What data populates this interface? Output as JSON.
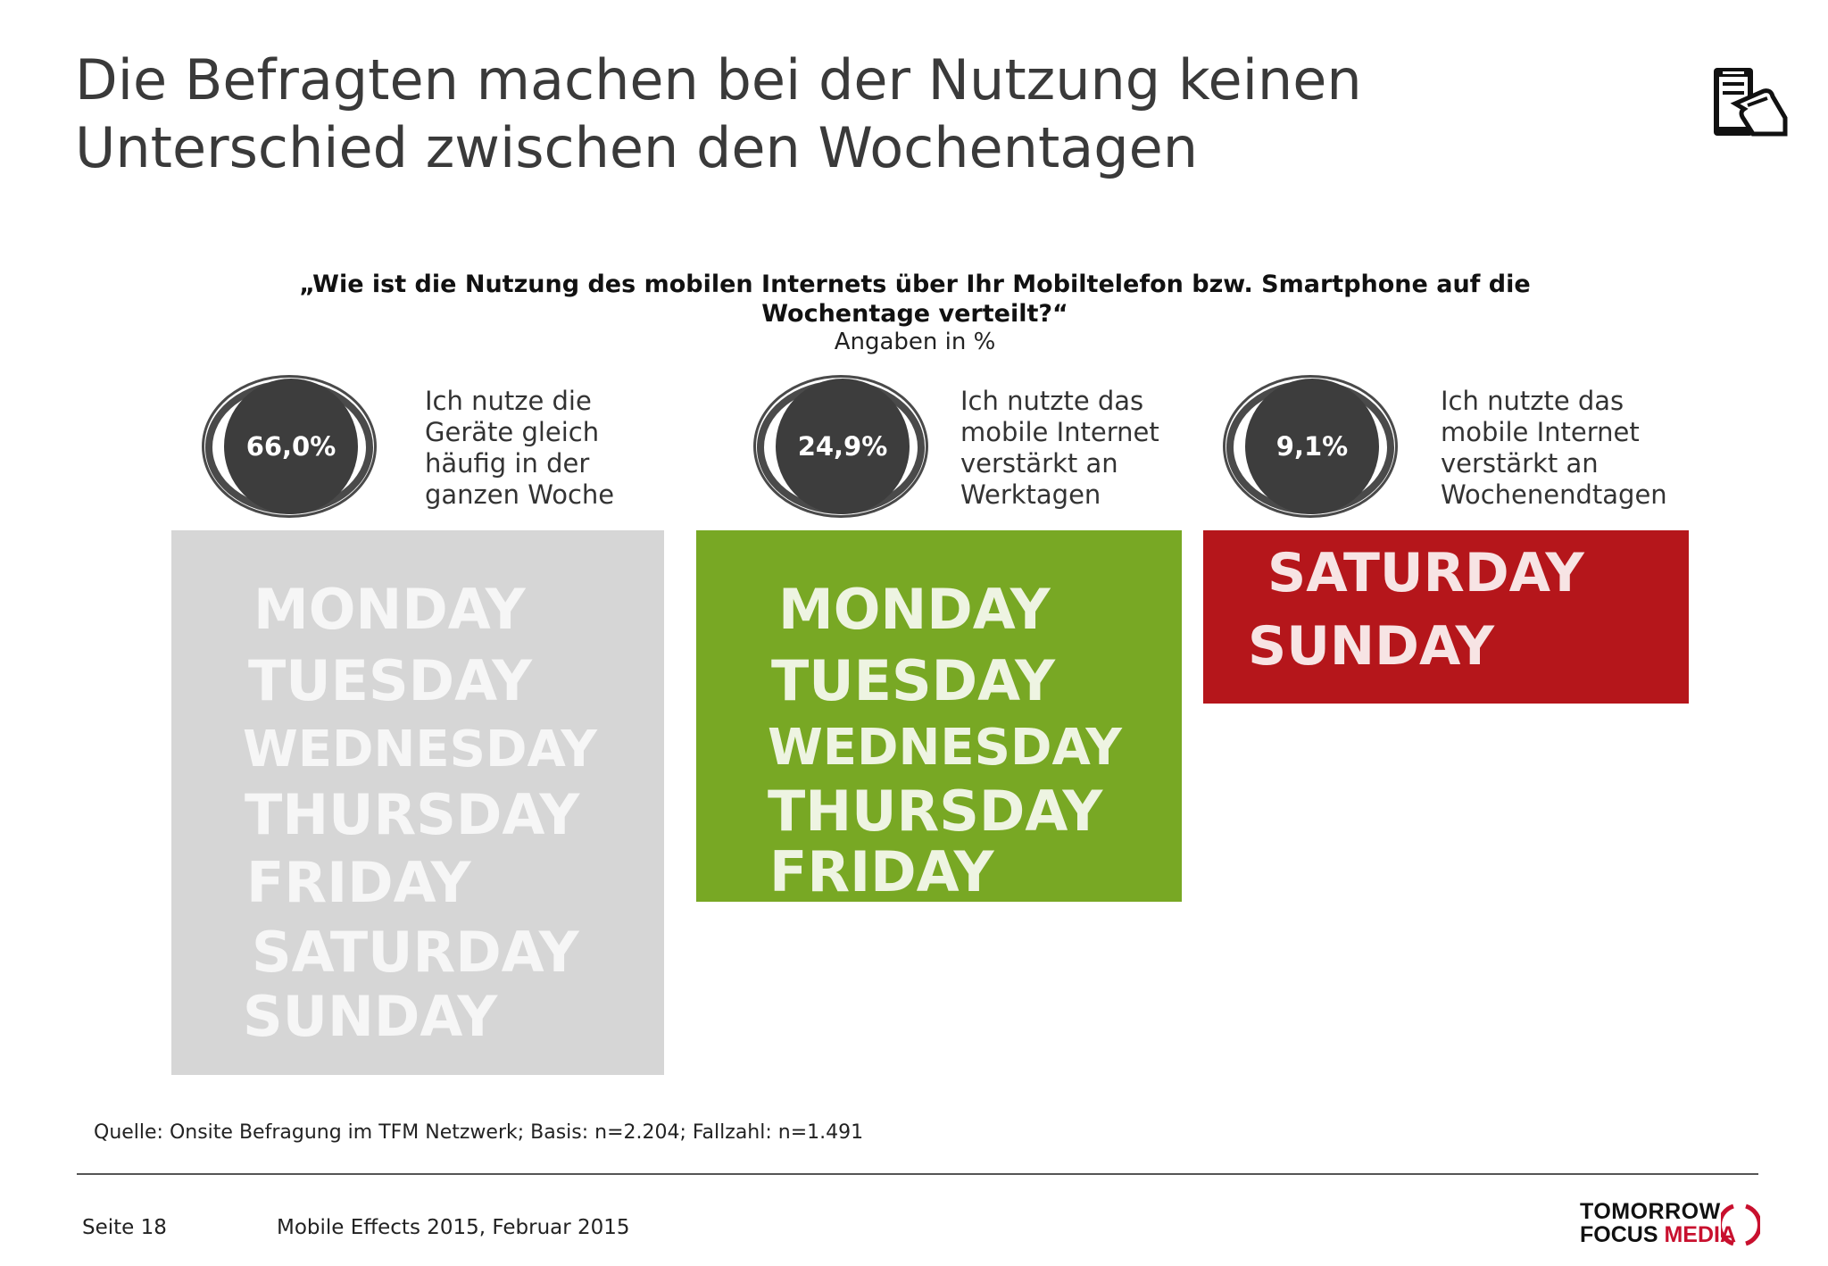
{
  "title": {
    "line1": "Die Befragten machen bei der Nutzung keinen",
    "line2": "Unterschied zwischen den Wochentagen"
  },
  "question": "„Wie ist die Nutzung des mobilen Internets über Ihr Mobiltelefon bzw. Smartphone auf die Wochentage verteilt?“",
  "unit": "Angaben in %",
  "groups": [
    {
      "value": "66,0%",
      "description": "Ich nutze die\nGeräte gleich\nhäufig in der\nganzen Woche",
      "days": [
        "MONDAY",
        "TUESDAY",
        "WEDNESDAY",
        "THURSDAY",
        "FRIDAY",
        "SATURDAY",
        "SUNDAY"
      ],
      "board_color": "#d4d4d4"
    },
    {
      "value": "24,9%",
      "description": "Ich nutzte das\nmobile Internet\nverstärkt an\nWerktagen",
      "days": [
        "MONDAY",
        "TUESDAY",
        "WEDNESDAY",
        "THURSDAY",
        "FRIDAY"
      ],
      "board_color": "#78a824"
    },
    {
      "value": "9,1%",
      "description": "Ich nutzte das\nmobile Internet\nverstärkt an\nWochenendtagen",
      "days": [
        "SATURDAY",
        "SUNDAY"
      ],
      "board_color": "#b5161b"
    }
  ],
  "source": "Quelle: Onsite Befragung im TFM Netzwerk; Basis: n=2.204; Fallzahl: n=1.491",
  "footer": {
    "page": "Seite 18",
    "doc": "Mobile Effects 2015, Februar 2015"
  },
  "logo": {
    "line1": "TOMORROW",
    "line2_a": "FOCUS ",
    "line2_b": "MEDIA"
  },
  "icons": {
    "top_right": "hand-smartphone-icon",
    "logo_mark": "parenthesis-ring-icon"
  }
}
